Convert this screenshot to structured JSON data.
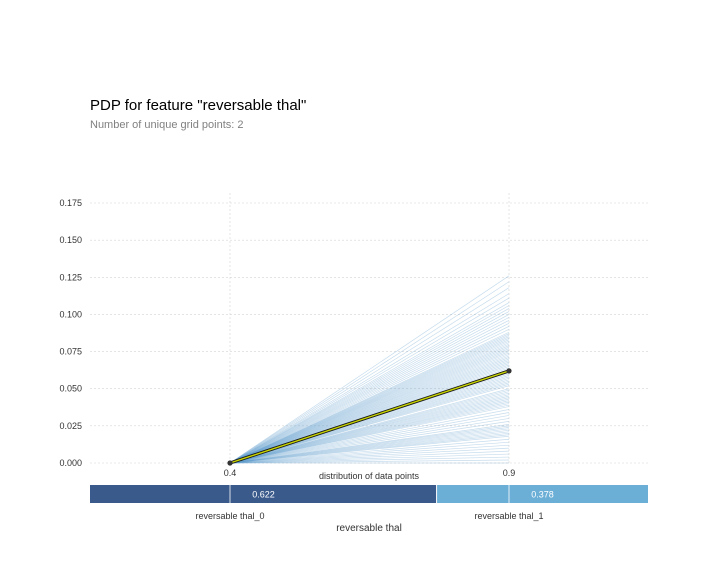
{
  "chart_data": {
    "type": "line",
    "title": "PDP for feature \"reversable thal\"",
    "subtitle": "Number of unique grid points: 2",
    "x": [
      0.4,
      0.9
    ],
    "x_tick_labels": [
      "0.4",
      "0.9"
    ],
    "xlabel": "reversable thal",
    "ylabel": "",
    "ylim": [
      0,
      0.18
    ],
    "y_ticks": [
      0.0,
      0.025,
      0.05,
      0.075,
      0.1,
      0.125,
      0.15,
      0.175
    ],
    "y_tick_labels": [
      "0.000",
      "0.025",
      "0.050",
      "0.075",
      "0.100",
      "0.125",
      "0.150",
      "0.175"
    ],
    "grid": true,
    "pdp": {
      "values": [
        0.0,
        0.062
      ]
    },
    "ice_end_values": [
      0.126,
      0.122,
      0.118,
      0.114,
      0.111,
      0.108,
      0.106,
      0.104,
      0.102,
      0.1,
      0.098,
      0.096,
      0.094,
      0.092,
      0.09,
      0.088,
      0.087,
      0.086,
      0.085,
      0.084,
      0.083,
      0.082,
      0.081,
      0.08,
      0.079,
      0.078,
      0.077,
      0.076,
      0.075,
      0.074,
      0.073,
      0.072,
      0.071,
      0.07,
      0.069,
      0.068,
      0.067,
      0.066,
      0.065,
      0.064,
      0.063,
      0.062,
      0.061,
      0.06,
      0.059,
      0.058,
      0.057,
      0.056,
      0.055,
      0.054,
      0.053,
      0.052,
      0.05,
      0.049,
      0.048,
      0.047,
      0.046,
      0.045,
      0.044,
      0.043,
      0.042,
      0.041,
      0.04,
      0.039,
      0.038,
      0.036,
      0.034,
      0.032,
      0.03,
      0.028,
      0.026,
      0.025,
      0.024,
      0.023,
      0.022,
      0.021,
      0.02,
      0.019,
      0.018,
      0.016,
      0.014,
      0.012,
      0.01,
      0.008,
      0.006,
      0.004,
      0.002,
      0.0
    ],
    "distribution": {
      "label": "distribution of data points",
      "segments": [
        {
          "label": "reversable thal_0",
          "value": 0.622,
          "value_text": "0.622",
          "color": "#3a5a8c"
        },
        {
          "label": "reversable thal_1",
          "value": 0.378,
          "value_text": "0.378",
          "color": "#6baed6"
        }
      ]
    },
    "colors": {
      "ice": "#5b9ccc",
      "pdp_outer": "#1a1a1a",
      "pdp_inner": "#c8d400",
      "grid": "#d4d4d4",
      "tick_text": "#333333"
    }
  }
}
